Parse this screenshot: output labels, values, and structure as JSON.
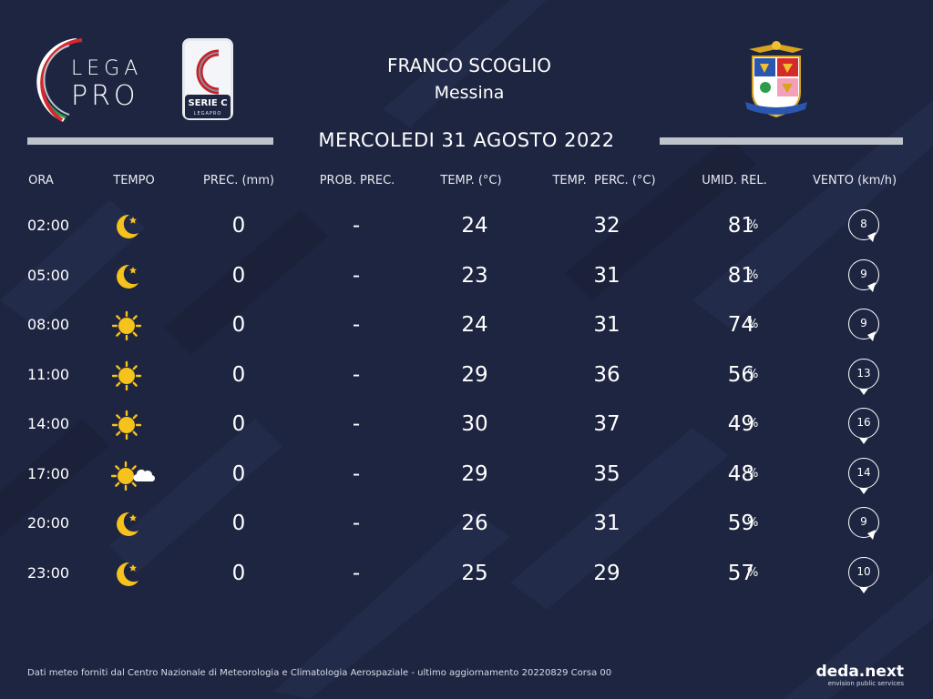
{
  "header": {
    "legapro_logo": {
      "line1": "LEGA",
      "line2": "PRO"
    },
    "seriec_logo": {
      "label": "SERIE C",
      "sublabel": "LEGAPRO"
    },
    "stadium": "FRANCO SCOGLIO",
    "city": "Messina",
    "date": "MERCOLEDI 31 AGOSTO 2022"
  },
  "columns": {
    "ora": "ORA",
    "tempo": "TEMPO",
    "prec": "PREC. (mm)",
    "prob": "PROB. PREC.",
    "temp": "TEMP. (°C)",
    "perc": "TEMP.  PERC. (°C)",
    "umid": "UMID. REL.",
    "vento": "VENTO (km/h)"
  },
  "rows": [
    {
      "time": "02:00",
      "icon": "moon-star-icon",
      "prec": "0",
      "prob": "-",
      "temp": "24",
      "perc": "32",
      "hum": "81",
      "pct": "%",
      "wind": "8",
      "wind_dir": "bottom-right"
    },
    {
      "time": "05:00",
      "icon": "moon-star-icon",
      "prec": "0",
      "prob": "-",
      "temp": "23",
      "perc": "31",
      "hum": "81",
      "pct": "%",
      "wind": "9",
      "wind_dir": "bottom-right"
    },
    {
      "time": "08:00",
      "icon": "sun-icon",
      "prec": "0",
      "prob": "-",
      "temp": "24",
      "perc": "31",
      "hum": "74",
      "pct": "%",
      "wind": "9",
      "wind_dir": "bottom-right"
    },
    {
      "time": "11:00",
      "icon": "sun-icon",
      "prec": "0",
      "prob": "-",
      "temp": "29",
      "perc": "36",
      "hum": "56",
      "pct": "%",
      "wind": "13",
      "wind_dir": "bottom"
    },
    {
      "time": "14:00",
      "icon": "sun-icon",
      "prec": "0",
      "prob": "-",
      "temp": "30",
      "perc": "37",
      "hum": "49",
      "pct": "%",
      "wind": "16",
      "wind_dir": "bottom"
    },
    {
      "time": "17:00",
      "icon": "sun-cloud-icon",
      "prec": "0",
      "prob": "-",
      "temp": "29",
      "perc": "35",
      "hum": "48",
      "pct": "%",
      "wind": "14",
      "wind_dir": "bottom"
    },
    {
      "time": "20:00",
      "icon": "moon-star-icon",
      "prec": "0",
      "prob": "-",
      "temp": "26",
      "perc": "31",
      "hum": "59",
      "pct": "%",
      "wind": "9",
      "wind_dir": "bottom-right"
    },
    {
      "time": "23:00",
      "icon": "moon-star-icon",
      "prec": "0",
      "prob": "-",
      "temp": "25",
      "perc": "29",
      "hum": "57",
      "pct": "%",
      "wind": "10",
      "wind_dir": "bottom"
    }
  ],
  "footer": {
    "note": "Dati meteo forniti dal Centro Nazionale di Meteorologia e Climatologia Aerospaziale - ultimo aggiornamento 20220829 Corsa 00",
    "brand": "deda.next",
    "brand_sub": "envision public services"
  },
  "colors": {
    "background": "#1e2541",
    "icon_yellow": "#f6c21c",
    "bar": "#bfc3cc",
    "text": "#ffffff"
  }
}
